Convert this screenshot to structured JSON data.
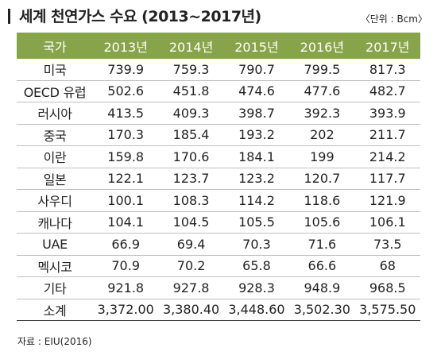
{
  "header": {
    "title": "세계 천연가스 수요 (2013~2017년)",
    "unit": "〈단위 : Bcm〉"
  },
  "table": {
    "columns": [
      "국가",
      "2013년",
      "2014년",
      "2015년",
      "2016년",
      "2017년"
    ],
    "rows": [
      {
        "country": "미국",
        "values": [
          "739.9",
          "759.3",
          "790.7",
          "799.5",
          "817.3"
        ]
      },
      {
        "country": "OECD 유럽",
        "values": [
          "502.6",
          "451.8",
          "474.6",
          "477.6",
          "482.7"
        ]
      },
      {
        "country": "러시아",
        "values": [
          "413.5",
          "409.3",
          "398.7",
          "392.3",
          "393.9"
        ]
      },
      {
        "country": "중국",
        "values": [
          "170.3",
          "185.4",
          "193.2",
          "202",
          "211.7"
        ]
      },
      {
        "country": "이란",
        "values": [
          "159.8",
          "170.6",
          "184.1",
          "199",
          "214.2"
        ]
      },
      {
        "country": "일본",
        "values": [
          "122.1",
          "123.7",
          "123.2",
          "120.7",
          "117.7"
        ]
      },
      {
        "country": "사우디",
        "values": [
          "100.1",
          "108.3",
          "114.2",
          "118.6",
          "121.9"
        ]
      },
      {
        "country": "캐나다",
        "values": [
          "104.1",
          "104.5",
          "105.5",
          "105.6",
          "106.1"
        ]
      },
      {
        "country": "UAE",
        "values": [
          "66.9",
          "69.4",
          "70.3",
          "71.6",
          "73.5"
        ]
      },
      {
        "country": "멕시코",
        "values": [
          "70.9",
          "70.2",
          "65.8",
          "66.6",
          "68"
        ]
      },
      {
        "country": "기타",
        "values": [
          "921.8",
          "927.8",
          "928.3",
          "948.9",
          "968.5"
        ]
      },
      {
        "country": "소계",
        "values": [
          "3,372.00",
          "3,380.40",
          "3,448.60",
          "3,502.30",
          "3,575.50"
        ]
      }
    ]
  },
  "footer": {
    "source": "자료 : EIU(2016)"
  },
  "colors": {
    "header_background": "#88a44a",
    "header_text": "#ffffff",
    "row_divider": "#bfbfbf"
  }
}
